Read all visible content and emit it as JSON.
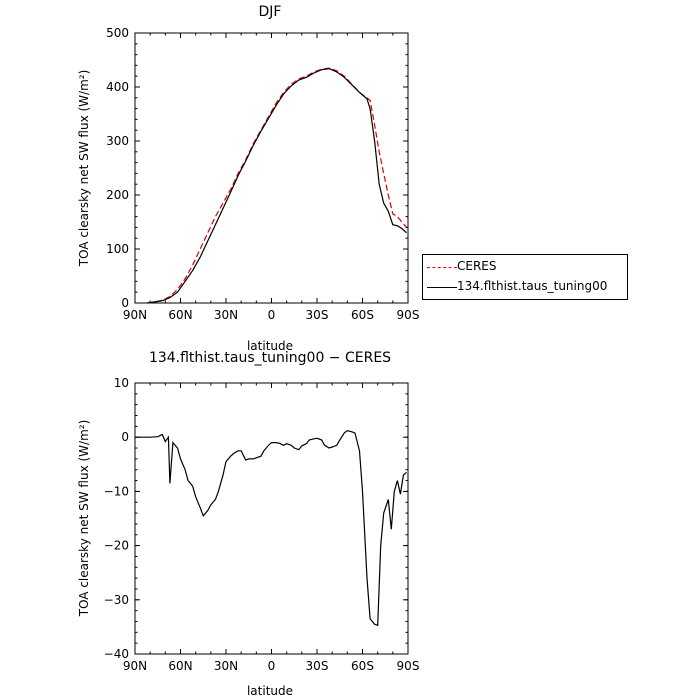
{
  "chart_data": [
    {
      "type": "line",
      "title": "DJF",
      "xlabel": "latitude",
      "ylabel": "TOA clearsky net SW flux (W/m²)",
      "x_ticks": [
        90,
        60,
        30,
        0,
        -30,
        -60,
        -90
      ],
      "x_tick_labels": [
        "90N",
        "60N",
        "30N",
        "0",
        "30S",
        "60S",
        "90S"
      ],
      "xlim": [
        90,
        -90
      ],
      "ylim": [
        0,
        500
      ],
      "y_ticks": [
        0,
        100,
        200,
        300,
        400,
        500
      ],
      "grid": false,
      "legend_position": "right",
      "series": [
        {
          "name": "CERES",
          "color": "#e00000",
          "style": "dashed",
          "x": [
            82,
            77,
            72,
            67,
            62,
            57,
            52,
            47,
            42,
            37,
            32,
            27,
            22,
            17,
            12,
            7,
            2,
            -3,
            -8,
            -13,
            -18,
            -23,
            -28,
            -33,
            -38,
            -43,
            -48,
            -53,
            -58,
            -63,
            -65,
            -68,
            -71,
            -74,
            -77,
            -80,
            -83,
            -86,
            -89
          ],
          "values": [
            0,
            2,
            5,
            12,
            25,
            45,
            70,
            100,
            130,
            160,
            185,
            210,
            240,
            265,
            295,
            320,
            345,
            370,
            390,
            405,
            415,
            420,
            428,
            433,
            435,
            430,
            420,
            405,
            390,
            380,
            375,
            330,
            280,
            240,
            200,
            165,
            160,
            150,
            140
          ]
        },
        {
          "name": "134.flthist.taus_tuning00",
          "color": "#000000",
          "style": "solid",
          "x": [
            82,
            77,
            72,
            67,
            62,
            57,
            52,
            47,
            42,
            37,
            32,
            27,
            22,
            17,
            12,
            7,
            2,
            -3,
            -8,
            -13,
            -18,
            -23,
            -28,
            -33,
            -38,
            -43,
            -48,
            -53,
            -58,
            -63,
            -65,
            -68,
            -71,
            -74,
            -77,
            -80,
            -83,
            -86,
            -89
          ],
          "values": [
            0,
            2,
            4,
            10,
            20,
            40,
            60,
            85,
            115,
            145,
            175,
            205,
            236,
            263,
            292,
            318,
            342,
            366,
            387,
            402,
            413,
            418,
            426,
            432,
            434,
            428,
            418,
            404,
            390,
            378,
            360,
            300,
            220,
            185,
            170,
            145,
            143,
            138,
            130
          ]
        }
      ]
    },
    {
      "type": "line",
      "title": "134.flthist.taus_tuning00 − CERES",
      "xlabel": "latitude",
      "ylabel": "TOA clearsky net SW flux (W/m²)",
      "x_ticks": [
        90,
        60,
        30,
        0,
        -30,
        -60,
        -90
      ],
      "x_tick_labels": [
        "90N",
        "60N",
        "30N",
        "0",
        "30S",
        "60S",
        "90S"
      ],
      "xlim": [
        90,
        -90
      ],
      "ylim": [
        -40,
        10
      ],
      "y_ticks": [
        -40,
        -30,
        -20,
        -10,
        0,
        10
      ],
      "grid": false,
      "series": [
        {
          "name": "",
          "color": "#000000",
          "style": "solid",
          "x": [
            89,
            85,
            80,
            75,
            72,
            70,
            68,
            67,
            65,
            62,
            60,
            57,
            55,
            52,
            50,
            47,
            45,
            42,
            40,
            37,
            35,
            32,
            30,
            27,
            25,
            22,
            20,
            17,
            15,
            12,
            10,
            7,
            5,
            2,
            0,
            -3,
            -5,
            -8,
            -10,
            -13,
            -15,
            -18,
            -20,
            -23,
            -25,
            -28,
            -30,
            -33,
            -35,
            -38,
            -40,
            -43,
            -45,
            -48,
            -50,
            -53,
            -55,
            -58,
            -60,
            -63,
            -65,
            -68,
            -70,
            -72,
            -74,
            -77,
            -79,
            -81,
            -83,
            -85,
            -87,
            -89
          ],
          "values": [
            0,
            0,
            0,
            0.1,
            0.5,
            -0.8,
            0,
            -8.5,
            -1.0,
            -2.0,
            -4.0,
            -6.0,
            -8.0,
            -9.0,
            -11.0,
            -13.0,
            -14.5,
            -13.5,
            -12.5,
            -11.5,
            -10.0,
            -7.0,
            -4.5,
            -3.5,
            -3.0,
            -2.5,
            -2.5,
            -4.2,
            -4.0,
            -4.0,
            -3.8,
            -3.5,
            -2.5,
            -1.5,
            -1.0,
            -1.0,
            -1.1,
            -1.5,
            -1.2,
            -1.5,
            -2.0,
            -2.3,
            -1.6,
            -1.2,
            -0.5,
            -0.3,
            -0.2,
            -0.5,
            -1.5,
            -2.0,
            -1.8,
            -1.5,
            -0.5,
            0.8,
            1.2,
            1.0,
            0.8,
            -2.5,
            -10.0,
            -26.0,
            -33.5,
            -34.5,
            -34.7,
            -20.0,
            -14.0,
            -11.5,
            -17.0,
            -10.0,
            -8.0,
            -10.5,
            -7.0,
            -6.5
          ]
        }
      ]
    }
  ]
}
